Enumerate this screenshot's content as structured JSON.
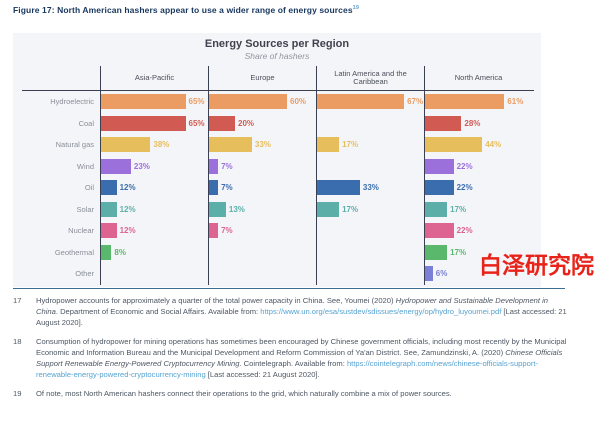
{
  "figure": {
    "caption": "Figure 17: North American hashers appear to use a wider range of energy sources",
    "caption_superscript": "19"
  },
  "chart_data": {
    "type": "bar",
    "orientation": "horizontal",
    "title": "Energy Sources per Region",
    "subtitle": "Share of hashers",
    "unit": "%",
    "xlim": [
      0,
      80
    ],
    "grid": false,
    "value_labels": true,
    "categories": [
      "Hydroelectric",
      "Coal",
      "Natural gas",
      "Wind",
      "Oil",
      "Solar",
      "Nuclear",
      "Geothermal",
      "Other"
    ],
    "category_colors": [
      "#eb9c63",
      "#d15b52",
      "#e7be5c",
      "#9c70db",
      "#3a6dae",
      "#5bafa8",
      "#dd6391",
      "#59b86b",
      "#7a80d5"
    ],
    "series": [
      {
        "name": "Asia-Pacific",
        "values": [
          65,
          65,
          38,
          23,
          12,
          12,
          12,
          8,
          null
        ]
      },
      {
        "name": "Europe",
        "values": [
          60,
          20,
          33,
          7,
          7,
          13,
          7,
          null,
          null
        ]
      },
      {
        "name": "Latin America and the Caribbean",
        "values": [
          67,
          null,
          17,
          null,
          33,
          17,
          null,
          null,
          null
        ]
      },
      {
        "name": "North America",
        "values": [
          61,
          28,
          44,
          22,
          22,
          17,
          22,
          17,
          6
        ]
      }
    ]
  },
  "watermark": {
    "text": "白泽研究院",
    "color": "#e8231a"
  },
  "footnotes": [
    {
      "number": "17",
      "segments": [
        {
          "style": "plain",
          "text": "Hydropower accounts for approximately a quarter of the total power capacity in China. See, Youmei (2020) "
        },
        {
          "style": "italic",
          "text": "Hydropower and Sustainable Development in China"
        },
        {
          "style": "plain",
          "text": ". Department of Economic and Social Affairs. Available from: "
        },
        {
          "style": "link",
          "text": "https://www.un.org/esa/sustdev/sdissues/energy/op/hydro_luyoumei.pdf"
        },
        {
          "style": "plain",
          "text": " [Last accessed: 21 August 2020]."
        }
      ]
    },
    {
      "number": "18",
      "segments": [
        {
          "style": "plain",
          "text": "Consumption of hydropower for mining operations has sometimes been encouraged by Chinese government officials, including most recently by the Municipal Economic and Information Bureau and the Municipal Development and Reform Commission of Ya'an District. See, Zamundzinski, A. (2020) "
        },
        {
          "style": "italic",
          "text": "Chinese Officials Support Renewable Energy-Powered Cryptocurrency Mining"
        },
        {
          "style": "plain",
          "text": ". Cointelegraph. Available from: "
        },
        {
          "style": "link",
          "text": "https://cointelegraph.com/news/chinese-officials-support-renewable-energy-powered-cryptocurrency-mining"
        },
        {
          "style": "plain",
          "text": " [Last accessed: 21 August 2020]."
        }
      ]
    },
    {
      "number": "19",
      "segments": [
        {
          "style": "plain",
          "text": "Of note, most North American hashers connect their operations to the grid, which naturally combine a mix of power sources."
        }
      ]
    }
  ]
}
